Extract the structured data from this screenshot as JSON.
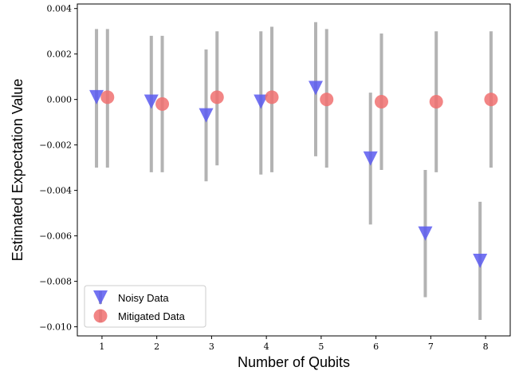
{
  "chart_data": {
    "type": "scatter",
    "xlabel": "Number of Qubits",
    "ylabel": "Estimated Expectation Value",
    "xlim": [
      0.55,
      8.45
    ],
    "ylim": [
      -0.0104,
      0.0042
    ],
    "x_ticks": [
      1,
      2,
      3,
      4,
      5,
      6,
      7,
      8
    ],
    "y_ticks": [
      -0.01,
      -0.008,
      -0.006,
      -0.004,
      -0.002,
      0.0,
      0.002,
      0.004
    ],
    "y_tick_labels": [
      "−0.010",
      "−0.008",
      "−0.006",
      "−0.004",
      "−0.002",
      "0.000",
      "0.002",
      "0.004"
    ],
    "grid": false,
    "legend_position": "lower-left",
    "errorbar_color": "#b3b3b3",
    "series": [
      {
        "name": "Noisy Data",
        "marker": "triangle-down",
        "color": "#5b5bf0",
        "x_offset": -0.1,
        "x": [
          1,
          2,
          3,
          4,
          5,
          6,
          7,
          8
        ],
        "y": [
          0.0001,
          -0.0001,
          -0.0007,
          -0.0001,
          0.0005,
          -0.0026,
          -0.0059,
          -0.0071
        ],
        "err_low": [
          -0.003,
          -0.0032,
          -0.0036,
          -0.0033,
          -0.0025,
          -0.0055,
          -0.0087,
          -0.0097
        ],
        "err_high": [
          0.0031,
          0.0028,
          0.0022,
          0.003,
          0.0034,
          0.0003,
          -0.0031,
          -0.0045
        ]
      },
      {
        "name": "Mitigated Data",
        "marker": "circle",
        "color": "#f07070",
        "x_offset": 0.1,
        "x": [
          1,
          2,
          3,
          4,
          5,
          6,
          7,
          8
        ],
        "y": [
          0.0001,
          -0.0002,
          0.0001,
          0.0001,
          0.0,
          -0.0001,
          -0.0001,
          0.0
        ],
        "err_low": [
          -0.003,
          -0.0032,
          -0.0029,
          -0.0032,
          -0.003,
          -0.0031,
          -0.0032,
          -0.003
        ],
        "err_high": [
          0.0031,
          0.0028,
          0.003,
          0.0032,
          0.0031,
          0.0029,
          0.003,
          0.003
        ]
      }
    ]
  }
}
